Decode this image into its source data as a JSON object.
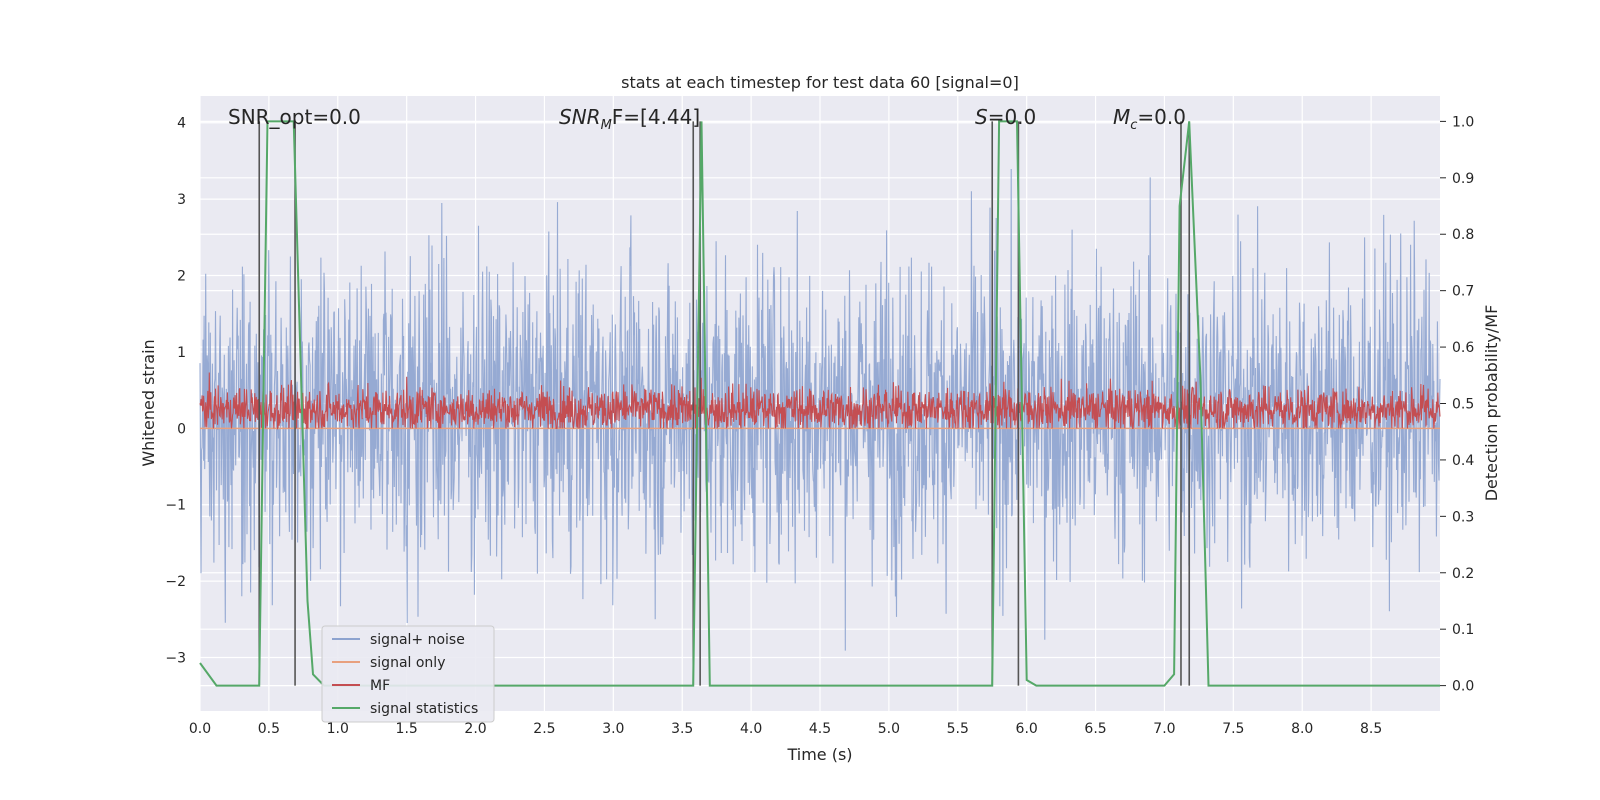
{
  "chart_data": {
    "type": "line",
    "title": "stats at each timestep for test data 60 [signal=0]",
    "xlabel": "Time (s)",
    "ylabel": "Whitened strain",
    "y2label": "Detection probability/MF",
    "xlim": [
      0,
      9.0
    ],
    "ylim": [
      -3.7,
      4.35
    ],
    "y2lim": [
      -0.045,
      1.045
    ],
    "xticks": [
      "0.0",
      "0.5",
      "1.0",
      "1.5",
      "2.0",
      "2.5",
      "3.0",
      "3.5",
      "4.0",
      "4.5",
      "5.0",
      "5.5",
      "6.0",
      "6.5",
      "7.0",
      "7.5",
      "8.0",
      "8.5"
    ],
    "yticks": [
      "4",
      "3",
      "2",
      "1",
      "0",
      "−1",
      "−2",
      "−3"
    ],
    "y2ticks": [
      "1.0",
      "0.9",
      "0.8",
      "0.7",
      "0.6",
      "0.5",
      "0.4",
      "0.3",
      "0.2",
      "0.1",
      "0.0"
    ],
    "grid": true,
    "legend_position": "lower-left",
    "annotations": [
      {
        "x": 0.2,
        "text": "SNR_opt=0.0"
      },
      {
        "x": 2.6,
        "text_main": "SNR",
        "text_sub": "M",
        "text_tail": "F=[4.44]"
      },
      {
        "x": 5.6,
        "text_main": "S",
        "text_tail": "=0.0"
      },
      {
        "x": 6.6,
        "text_main": "M",
        "text_sub": "c",
        "text_tail": "=0.0"
      }
    ],
    "series": [
      {
        "name": "signal+ noise",
        "color": "#8da3cf",
        "kind": "noise",
        "mean": 0.25,
        "std": 1.0,
        "min": -3.3,
        "max": 4.0
      },
      {
        "name": "signal only",
        "color": "#e8a07e",
        "kind": "flat",
        "value": 0.0
      },
      {
        "name": "MF",
        "color": "#c44e52",
        "kind": "noise",
        "mean": 0.25,
        "std": 0.15,
        "min": 0.0,
        "max": 1.0
      },
      {
        "name": "signal statistics",
        "color": "#55a868",
        "kind": "line",
        "axis": "y2",
        "x": [
          0.0,
          0.12,
          0.2,
          0.3,
          0.43,
          0.49,
          0.68,
          0.78,
          0.82,
          0.9,
          1.0,
          2.0,
          3.0,
          3.58,
          3.64,
          3.7,
          4.0,
          5.0,
          5.75,
          5.8,
          5.93,
          6.0,
          6.07,
          6.5,
          7.0,
          7.07,
          7.11,
          7.18,
          7.26,
          7.32,
          8.0,
          9.0
        ],
        "y": [
          0.04,
          0.0,
          0.0,
          0.0,
          0.0,
          1.0,
          1.0,
          0.15,
          0.02,
          0.0,
          0.0,
          0.0,
          0.0,
          0.0,
          1.0,
          0.0,
          0.0,
          0.0,
          0.0,
          1.0,
          1.0,
          0.01,
          0.0,
          0.0,
          0.0,
          0.02,
          0.85,
          1.0,
          0.55,
          0.0,
          0.0,
          0.0
        ]
      }
    ],
    "vlines": [
      0.43,
      0.69,
      3.58,
      3.63,
      5.75,
      5.94,
      7.12,
      7.18
    ],
    "vline_color": "#555555"
  }
}
